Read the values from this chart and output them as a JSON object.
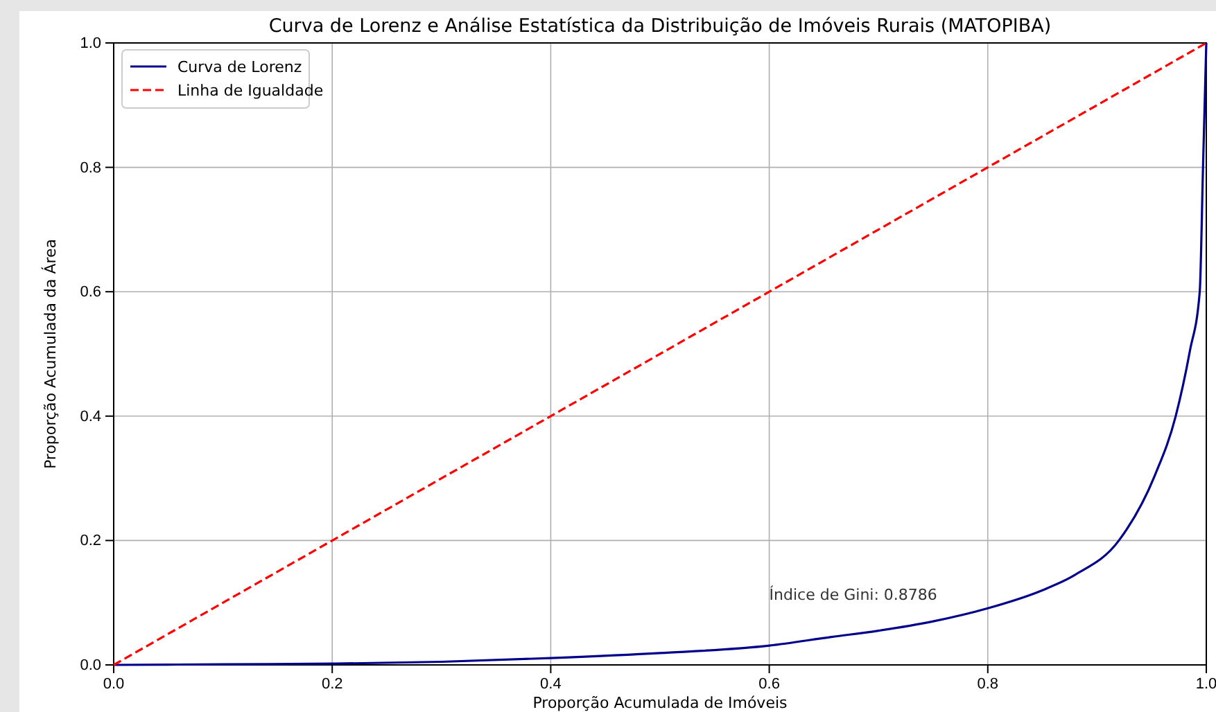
{
  "chart_data": {
    "type": "line",
    "title": "Curva de Lorenz e Análise Estatística da Distribuição de Imóveis Rurais (MATOPIBA)",
    "xlabel": "Proporção Acumulada de Imóveis",
    "ylabel": "Proporção Acumulada da Área",
    "series": [
      {
        "name": "Curva de Lorenz",
        "color": "#00008b",
        "line_style": "solid",
        "x": [
          0,
          0.1,
          0.2,
          0.3,
          0.4,
          0.5,
          0.6,
          0.657,
          0.7,
          0.75,
          0.8,
          0.85,
          0.88,
          0.92,
          0.953,
          0.972,
          0.985,
          0.994,
          0.997,
          1
        ],
        "values": [
          0,
          0.001,
          0.002,
          0.005,
          0.011,
          0.019,
          0.031,
          0.045,
          0.055,
          0.07,
          0.091,
          0.12,
          0.145,
          0.2,
          0.305,
          0.4,
          0.505,
          0.6,
          0.8,
          1
        ]
      },
      {
        "name": "Linha de Igualdade",
        "color": "#ff0000",
        "line_style": "dashed",
        "x": [
          0,
          1
        ],
        "values": [
          0,
          1
        ]
      }
    ],
    "xlim": [
      0,
      1
    ],
    "ylim": [
      0,
      1
    ],
    "xticks": [
      {
        "value": 0,
        "label": "0.0"
      },
      0.2,
      0.4,
      0.6,
      0.8,
      {
        "value": 1,
        "label": "1.0"
      }
    ],
    "yticks": [
      {
        "value": 0,
        "label": "0.0"
      },
      0.2,
      0.4,
      0.6,
      0.8,
      {
        "value": 1,
        "label": "1.0"
      }
    ],
    "grid": true,
    "legend": "top left",
    "annotations": [
      "Índice de Gini: 0.8786"
    ]
  }
}
